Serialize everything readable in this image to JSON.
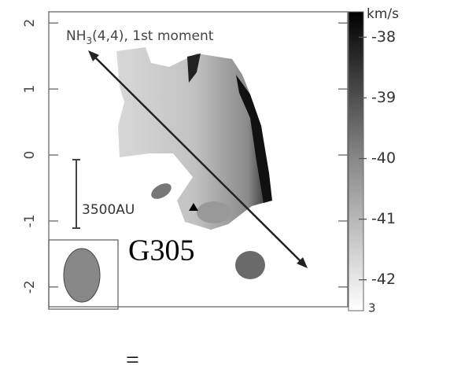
{
  "chart_data": {
    "type": "map",
    "title": {
      "main": "NH",
      "sub": "3",
      "rest": "(4,4), 1st moment"
    },
    "ylim": [
      2.17,
      -2.3
    ],
    "yticks": [
      2,
      1,
      0,
      -1,
      -2
    ],
    "colorbar": {
      "label": "km/s",
      "lim": [
        -37.58,
        -42.51
      ],
      "ticks": [
        -38,
        -39,
        -40,
        -41,
        -42
      ],
      "cut_label": "3"
    },
    "annotations": {
      "scale": "3500AU",
      "source": "G305"
    },
    "footer": "="
  }
}
